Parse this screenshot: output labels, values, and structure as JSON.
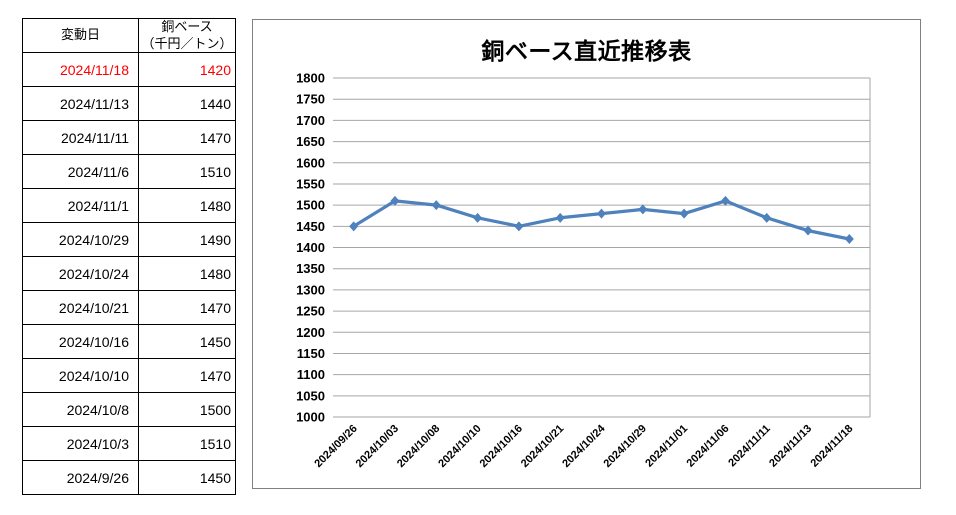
{
  "table": {
    "header": {
      "date_label": "変動日",
      "value_label_line1": "銅ベース",
      "value_label_line2": "（千円／トン）"
    },
    "highlight_color": "#FF0000",
    "rows": [
      {
        "date": "2024/11/18",
        "value": "1420",
        "highlighted": true
      },
      {
        "date": "2024/11/13",
        "value": "1440",
        "highlighted": false
      },
      {
        "date": "2024/11/11",
        "value": "1470",
        "highlighted": false
      },
      {
        "date": "2024/11/6",
        "value": "1510",
        "highlighted": false
      },
      {
        "date": "2024/11/1",
        "value": "1480",
        "highlighted": false
      },
      {
        "date": "2024/10/29",
        "value": "1490",
        "highlighted": false
      },
      {
        "date": "2024/10/24",
        "value": "1480",
        "highlighted": false
      },
      {
        "date": "2024/10/21",
        "value": "1470",
        "highlighted": false
      },
      {
        "date": "2024/10/16",
        "value": "1450",
        "highlighted": false
      },
      {
        "date": "2024/10/10",
        "value": "1470",
        "highlighted": false
      },
      {
        "date": "2024/10/8",
        "value": "1500",
        "highlighted": false
      },
      {
        "date": "2024/10/3",
        "value": "1510",
        "highlighted": false
      },
      {
        "date": "2024/9/26",
        "value": "1450",
        "highlighted": false
      }
    ]
  },
  "chart_data": {
    "type": "line",
    "title": "銅ベース直近推移表",
    "categories": [
      "2024/09/26",
      "2024/10/03",
      "2024/10/08",
      "2024/10/10",
      "2024/10/16",
      "2024/10/21",
      "2024/10/24",
      "2024/10/29",
      "2024/11/01",
      "2024/11/06",
      "2024/11/11",
      "2024/11/13",
      "2024/11/18"
    ],
    "series": [
      {
        "name": "銅ベース（千円／トン）",
        "values": [
          1450,
          1510,
          1500,
          1470,
          1450,
          1470,
          1480,
          1490,
          1480,
          1510,
          1470,
          1440,
          1420
        ]
      }
    ],
    "xlabel": "",
    "ylabel": "",
    "ylim": [
      1000,
      1800
    ],
    "ytick_step": 50,
    "grid": true,
    "legend_position": "none",
    "marker": "diamond",
    "line_color": "#4F81BD",
    "gridline_color": "#A6A6A6",
    "chart_border_color": "#808080",
    "axis_label_color": "#000000"
  }
}
